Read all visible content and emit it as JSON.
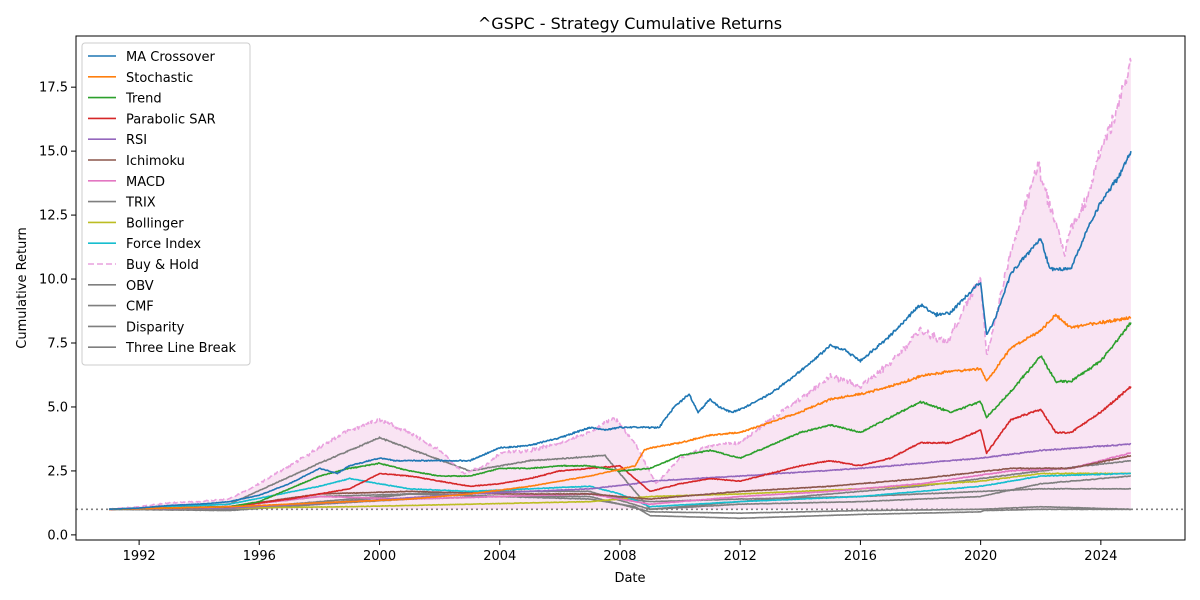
{
  "chart_data": {
    "type": "line",
    "title": "^GSPC - Strategy Cumulative Returns",
    "xlabel": "Date",
    "ylabel": "Cumulative Return",
    "xlim": [
      1989.9,
      2026.8
    ],
    "ylim": [
      -0.2,
      19.5
    ],
    "x_ticks": [
      1992,
      1996,
      2000,
      2004,
      2008,
      2012,
      2016,
      2020,
      2024
    ],
    "y_ticks": [
      0.0,
      2.5,
      5.0,
      7.5,
      10.0,
      12.5,
      15.0,
      17.5
    ],
    "x_tick_labels": [
      "1992",
      "1996",
      "2000",
      "2004",
      "2008",
      "2012",
      "2016",
      "2020",
      "2024"
    ],
    "y_tick_labels": [
      "0.0",
      "2.5",
      "5.0",
      "7.5",
      "10.0",
      "12.5",
      "15.0",
      "17.5"
    ],
    "grid": false,
    "legend_position": "upper-left",
    "reference_line": {
      "y": 1.0,
      "style": "dotted",
      "color": "#808080"
    },
    "fill_under": {
      "series": "Buy & Hold",
      "color": "#e377c2",
      "opacity": 0.2
    },
    "series": [
      {
        "name": "MA Crossover",
        "color": "#1f77b4",
        "dash": "solid",
        "x": [
          1991,
          1992,
          1993,
          1994,
          1995,
          1996,
          1997,
          1998,
          1998.6,
          1999,
          2000,
          2000.5,
          2001,
          2002,
          2003,
          2004,
          2005,
          2006,
          2007,
          2007.5,
          2008,
          2009.3,
          2009.8,
          2010.3,
          2010.6,
          2011,
          2011.3,
          2011.7,
          2012,
          2013,
          2014,
          2015,
          2015.5,
          2016,
          2017,
          2018,
          2018.5,
          2019,
          2020,
          2020.2,
          2020.5,
          2021,
          2022,
          2022.3,
          2023,
          2023.5,
          2024,
          2024.6,
          2025
        ],
        "y": [
          1.0,
          1.05,
          1.15,
          1.2,
          1.3,
          1.55,
          2.0,
          2.6,
          2.4,
          2.7,
          3.0,
          2.9,
          2.9,
          2.9,
          2.9,
          3.4,
          3.5,
          3.8,
          4.2,
          4.1,
          4.2,
          4.2,
          5.0,
          5.5,
          4.8,
          5.3,
          5.0,
          4.8,
          4.9,
          5.5,
          6.4,
          7.4,
          7.2,
          6.8,
          7.8,
          9.0,
          8.6,
          8.7,
          9.9,
          7.8,
          8.5,
          10.2,
          11.6,
          10.4,
          10.4,
          11.8,
          13.0,
          14.0,
          15.0
        ]
      },
      {
        "name": "Stochastic",
        "color": "#ff7f0e",
        "dash": "solid",
        "x": [
          1991,
          1993,
          1995,
          1997,
          1999,
          2001,
          2003,
          2005,
          2007,
          2008.5,
          2008.8,
          2009,
          2010,
          2011,
          2012,
          2013,
          2014,
          2015,
          2016,
          2017,
          2018,
          2019,
          2020,
          2020.2,
          2021,
          2022,
          2022.5,
          2023,
          2024,
          2025
        ],
        "y": [
          1.0,
          1.05,
          1.1,
          1.2,
          1.3,
          1.4,
          1.6,
          1.9,
          2.3,
          2.7,
          3.3,
          3.4,
          3.6,
          3.9,
          4.0,
          4.4,
          4.8,
          5.3,
          5.5,
          5.8,
          6.2,
          6.4,
          6.5,
          6.0,
          7.3,
          8.0,
          8.6,
          8.1,
          8.3,
          8.5
        ]
      },
      {
        "name": "Trend",
        "color": "#2ca02c",
        "dash": "solid",
        "x": [
          1991,
          1993,
          1995,
          1996,
          1997,
          1998,
          1999,
          2000,
          2001,
          2002,
          2003,
          2004,
          2005,
          2006,
          2007,
          2008,
          2009,
          2010,
          2011,
          2012,
          2013,
          2014,
          2015,
          2016,
          2017,
          2018,
          2019,
          2020,
          2020.2,
          2021,
          2022,
          2022.5,
          2023,
          2024,
          2025
        ],
        "y": [
          1.0,
          1.05,
          1.1,
          1.3,
          1.8,
          2.3,
          2.6,
          2.8,
          2.5,
          2.3,
          2.3,
          2.6,
          2.6,
          2.7,
          2.7,
          2.5,
          2.6,
          3.1,
          3.3,
          3.0,
          3.5,
          4.0,
          4.3,
          4.0,
          4.6,
          5.2,
          4.8,
          5.2,
          4.6,
          5.6,
          7.0,
          6.0,
          6.0,
          6.8,
          8.3
        ]
      },
      {
        "name": "Parabolic SAR",
        "color": "#d62728",
        "dash": "solid",
        "x": [
          1991,
          1993,
          1995,
          1997,
          1999,
          2000,
          2001,
          2002,
          2003,
          2004,
          2005,
          2006,
          2007,
          2008,
          2009,
          2010,
          2011,
          2012,
          2013,
          2014,
          2015,
          2016,
          2017,
          2018,
          2019,
          2020,
          2020.2,
          2021,
          2022,
          2022.5,
          2023,
          2024,
          2025
        ],
        "y": [
          1.0,
          1.05,
          1.1,
          1.4,
          1.8,
          2.4,
          2.3,
          2.1,
          1.9,
          2.0,
          2.2,
          2.5,
          2.6,
          2.7,
          1.7,
          2.0,
          2.2,
          2.1,
          2.4,
          2.7,
          2.9,
          2.7,
          3.0,
          3.6,
          3.6,
          4.1,
          3.2,
          4.5,
          4.9,
          4.0,
          4.0,
          4.8,
          5.8
        ]
      },
      {
        "name": "RSI",
        "color": "#9467bd",
        "dash": "solid",
        "x": [
          1991,
          1995,
          1999,
          2003,
          2007,
          2008.5,
          2009,
          2012,
          2016,
          2020,
          2022,
          2025
        ],
        "y": [
          1.0,
          1.05,
          1.3,
          1.6,
          1.8,
          2.0,
          2.1,
          2.3,
          2.6,
          3.0,
          3.3,
          3.55
        ]
      },
      {
        "name": "Ichimoku",
        "color": "#8c564b",
        "dash": "solid",
        "x": [
          1991,
          1995,
          1998,
          2001,
          2004,
          2007,
          2009,
          2012,
          2015,
          2018,
          2021,
          2023,
          2025
        ],
        "y": [
          1.0,
          1.1,
          1.6,
          1.7,
          1.6,
          1.6,
          1.4,
          1.7,
          1.9,
          2.2,
          2.6,
          2.6,
          3.1
        ]
      },
      {
        "name": "MACD",
        "color": "#e377c2",
        "dash": "solid",
        "x": [
          1991,
          1995,
          1998,
          2001,
          2004,
          2007,
          2009,
          2012,
          2015,
          2018,
          2021,
          2023,
          2025
        ],
        "y": [
          1.0,
          1.1,
          1.5,
          1.4,
          1.5,
          1.6,
          1.2,
          1.5,
          1.7,
          2.0,
          2.5,
          2.6,
          3.2
        ]
      },
      {
        "name": "TRIX",
        "color": "#7f7f7f",
        "dash": "solid",
        "x": [
          1991,
          1995,
          1998,
          2000,
          2003,
          2005,
          2007.5,
          2009,
          2012,
          2015,
          2018,
          2020,
          2022,
          2025
        ],
        "y": [
          1.0,
          1.2,
          2.8,
          3.8,
          2.5,
          2.9,
          3.1,
          1.0,
          1.3,
          1.6,
          1.9,
          2.2,
          2.5,
          2.9
        ]
      },
      {
        "name": "Bollinger",
        "color": "#bcbd22",
        "dash": "solid",
        "x": [
          1991,
          1995,
          1999,
          2003,
          2007,
          2009,
          2012,
          2016,
          2020,
          2022,
          2025
        ],
        "y": [
          1.0,
          1.05,
          1.1,
          1.2,
          1.3,
          1.5,
          1.6,
          1.8,
          2.1,
          2.4,
          2.4
        ]
      },
      {
        "name": "Force Index",
        "color": "#17becf",
        "dash": "solid",
        "x": [
          1991,
          1995,
          1998,
          1999,
          2001,
          2003,
          2005,
          2007,
          2008,
          2009,
          2012,
          2016,
          2019,
          2020,
          2022,
          2025
        ],
        "y": [
          1.0,
          1.2,
          1.9,
          2.2,
          1.8,
          1.7,
          1.8,
          1.9,
          1.6,
          1.1,
          1.3,
          1.5,
          1.8,
          1.9,
          2.3,
          2.4
        ]
      },
      {
        "name": "Buy & Hold",
        "color": "#e9a0de",
        "dash": "dashed",
        "x": [
          1991,
          1992,
          1993,
          1994,
          1995,
          1996,
          1997,
          1998,
          1999,
          2000,
          2001,
          2002,
          2002.8,
          2003.5,
          2004,
          2005,
          2006,
          2007,
          2007.8,
          2008.5,
          2009.2,
          2010,
          2011,
          2012,
          2013,
          2014,
          2015,
          2016,
          2017,
          2018,
          2018.9,
          2019.5,
          2020,
          2020.2,
          2020.5,
          2021,
          2021.9,
          2022.4,
          2022.8,
          2023,
          2023.5,
          2024,
          2024.5,
          2025
        ],
        "y": [
          1.0,
          1.1,
          1.25,
          1.3,
          1.4,
          2.0,
          2.7,
          3.4,
          4.1,
          4.5,
          4.0,
          3.3,
          2.4,
          2.7,
          3.2,
          3.3,
          3.6,
          4.0,
          4.6,
          3.6,
          2.0,
          3.0,
          3.5,
          3.6,
          4.5,
          5.3,
          6.2,
          5.8,
          6.7,
          8.0,
          7.5,
          9.0,
          10.0,
          7.0,
          8.5,
          11.0,
          14.5,
          12.5,
          11.0,
          12.0,
          13.0,
          15.0,
          16.5,
          18.5
        ]
      },
      {
        "name": "OBV",
        "color": "#7f7f7f",
        "dash": "solid",
        "x": [
          1991,
          1995,
          1998,
          2001,
          2004,
          2007,
          2008.5,
          2009,
          2012,
          2016,
          2020,
          2020.1,
          2022,
          2025
        ],
        "y": [
          1.0,
          1.0,
          1.3,
          1.6,
          1.5,
          1.4,
          1.1,
          0.75,
          0.65,
          0.8,
          0.9,
          0.95,
          1.0,
          1.0
        ]
      },
      {
        "name": "CMF",
        "color": "#7f7f7f",
        "dash": "solid",
        "x": [
          1991,
          1995,
          1998,
          2001,
          2004,
          2007,
          2009,
          2012,
          2016,
          2020,
          2022,
          2025
        ],
        "y": [
          1.0,
          0.95,
          1.2,
          1.6,
          1.5,
          1.5,
          0.9,
          0.85,
          0.95,
          1.0,
          1.1,
          1.0
        ]
      },
      {
        "name": "Disparity",
        "color": "#7f7f7f",
        "dash": "solid",
        "x": [
          1991,
          1995,
          1998,
          2001,
          2004,
          2007,
          2009,
          2012,
          2016,
          2020,
          2022,
          2025
        ],
        "y": [
          1.0,
          1.1,
          1.5,
          1.6,
          1.7,
          1.7,
          1.0,
          1.2,
          1.3,
          1.5,
          2.0,
          2.3
        ]
      },
      {
        "name": "Three Line Break",
        "color": "#7f7f7f",
        "dash": "solid",
        "x": [
          1991,
          1995,
          1998,
          2001,
          2004,
          2007,
          2009,
          2012,
          2016,
          2020,
          2022,
          2025
        ],
        "y": [
          1.0,
          1.05,
          1.2,
          1.4,
          1.5,
          1.6,
          1.3,
          1.4,
          1.5,
          1.7,
          1.8,
          1.8
        ]
      }
    ]
  }
}
